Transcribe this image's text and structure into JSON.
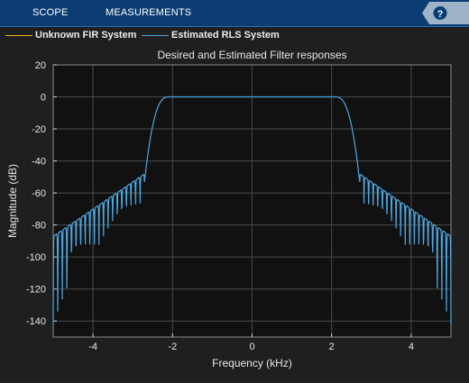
{
  "toolstrip": {
    "tabs": [
      {
        "label": "SCOPE"
      },
      {
        "label": "MEASUREMENTS"
      }
    ],
    "help_label": "?"
  },
  "legend": {
    "items": [
      {
        "label": "Unknown FIR System",
        "color": "#edb120"
      },
      {
        "label": "Estimated RLS System",
        "color": "#4da7e0"
      }
    ]
  },
  "colors": {
    "toolstrip_bg": "#0b3d73",
    "figure_bg": "#1f1f1f",
    "axes_bg": "#111111",
    "grid": "#4a4a4a",
    "trace": "#4da7e0"
  },
  "chart_data": {
    "type": "line",
    "title": "Desired and Estimated Filter responses",
    "xlabel": "Frequency (kHz)",
    "ylabel": "Magnitude (dB)",
    "xlim": [
      -5,
      5
    ],
    "ylim": [
      -150,
      20
    ],
    "xticks": [
      -4,
      -2,
      0,
      2,
      4
    ],
    "yticks": [
      20,
      0,
      -20,
      -40,
      -60,
      -80,
      -100,
      -120,
      -140
    ],
    "grid": true,
    "legend_position": "top",
    "series": [
      {
        "name": "Unknown FIR System",
        "color": "#edb120",
        "x": [
          -5,
          -4.5,
          -4,
          -3.5,
          -3,
          -2.75,
          -2.5,
          -2.2,
          -2,
          0,
          2,
          2.2,
          2.5,
          2.75,
          3,
          3.5,
          4,
          4.5,
          5
        ],
        "y": [
          -90,
          -86,
          -80,
          -72,
          -60,
          -40,
          -12,
          -1,
          0,
          0,
          0,
          -1,
          -12,
          -40,
          -60,
          -72,
          -80,
          -86,
          -90
        ]
      },
      {
        "name": "Estimated RLS System",
        "color": "#4da7e0",
        "x": [
          -5,
          -4.9,
          -4.5,
          -4.0,
          -3.5,
          -3.0,
          -2.75,
          -2.5,
          -2.3,
          -2.1,
          0,
          2.1,
          2.3,
          2.5,
          2.75,
          3.0,
          3.5,
          4.0,
          4.5,
          4.9,
          5
        ],
        "y": [
          -88,
          -142,
          -86,
          -82,
          -75,
          -66,
          -45,
          -12,
          -2,
          0,
          0,
          0,
          -2,
          -12,
          -45,
          -66,
          -75,
          -82,
          -86,
          -142,
          -88
        ],
        "nulls_at_edges": [
          -142,
          -138,
          -135
        ]
      }
    ]
  }
}
